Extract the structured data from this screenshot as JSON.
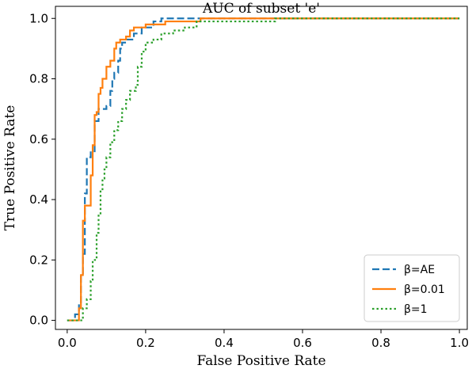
{
  "chart_data": {
    "type": "line",
    "title": "AUC of subset 'e'",
    "xlabel": "False Positive Rate",
    "ylabel": "True Positive Rate",
    "xlim": [
      -0.03,
      1.02
    ],
    "ylim": [
      -0.03,
      1.04
    ],
    "xticks": [
      "0.0",
      "0.2",
      "0.4",
      "0.6",
      "0.8",
      "1.0"
    ],
    "yticks": [
      "0.0",
      "0.2",
      "0.4",
      "0.6",
      "0.8",
      "1.0"
    ],
    "grid": false,
    "legend_position": "bottom-right",
    "series": [
      {
        "name": "β=AE",
        "color": "#1f77b4",
        "style": "dashed",
        "points": [
          [
            0.0,
            0.0
          ],
          [
            0.02,
            0.0
          ],
          [
            0.02,
            0.02
          ],
          [
            0.03,
            0.02
          ],
          [
            0.03,
            0.06
          ],
          [
            0.035,
            0.06
          ],
          [
            0.035,
            0.15
          ],
          [
            0.04,
            0.15
          ],
          [
            0.04,
            0.22
          ],
          [
            0.045,
            0.22
          ],
          [
            0.045,
            0.42
          ],
          [
            0.05,
            0.42
          ],
          [
            0.05,
            0.54
          ],
          [
            0.06,
            0.54
          ],
          [
            0.06,
            0.56
          ],
          [
            0.07,
            0.56
          ],
          [
            0.07,
            0.66
          ],
          [
            0.08,
            0.66
          ],
          [
            0.08,
            0.7
          ],
          [
            0.1,
            0.7
          ],
          [
            0.1,
            0.71
          ],
          [
            0.11,
            0.71
          ],
          [
            0.11,
            0.76
          ],
          [
            0.115,
            0.76
          ],
          [
            0.115,
            0.8
          ],
          [
            0.12,
            0.8
          ],
          [
            0.12,
            0.82
          ],
          [
            0.13,
            0.82
          ],
          [
            0.13,
            0.86
          ],
          [
            0.135,
            0.86
          ],
          [
            0.135,
            0.9
          ],
          [
            0.14,
            0.9
          ],
          [
            0.14,
            0.92
          ],
          [
            0.15,
            0.92
          ],
          [
            0.15,
            0.93
          ],
          [
            0.17,
            0.93
          ],
          [
            0.17,
            0.95
          ],
          [
            0.19,
            0.95
          ],
          [
            0.19,
            0.97
          ],
          [
            0.22,
            0.97
          ],
          [
            0.22,
            0.99
          ],
          [
            0.24,
            0.99
          ],
          [
            0.24,
            1.0
          ],
          [
            0.3,
            1.0
          ],
          [
            1.0,
            1.0
          ]
        ]
      },
      {
        "name": "β=0.01",
        "color": "#ff7f0e",
        "style": "solid",
        "points": [
          [
            0.0,
            0.0
          ],
          [
            0.03,
            0.0
          ],
          [
            0.03,
            0.04
          ],
          [
            0.035,
            0.04
          ],
          [
            0.035,
            0.15
          ],
          [
            0.04,
            0.15
          ],
          [
            0.04,
            0.33
          ],
          [
            0.045,
            0.33
          ],
          [
            0.045,
            0.38
          ],
          [
            0.06,
            0.38
          ],
          [
            0.06,
            0.48
          ],
          [
            0.065,
            0.48
          ],
          [
            0.065,
            0.58
          ],
          [
            0.07,
            0.58
          ],
          [
            0.07,
            0.68
          ],
          [
            0.075,
            0.68
          ],
          [
            0.075,
            0.69
          ],
          [
            0.08,
            0.69
          ],
          [
            0.08,
            0.75
          ],
          [
            0.085,
            0.75
          ],
          [
            0.085,
            0.77
          ],
          [
            0.09,
            0.77
          ],
          [
            0.09,
            0.8
          ],
          [
            0.1,
            0.8
          ],
          [
            0.1,
            0.84
          ],
          [
            0.11,
            0.84
          ],
          [
            0.11,
            0.86
          ],
          [
            0.12,
            0.86
          ],
          [
            0.12,
            0.9
          ],
          [
            0.125,
            0.9
          ],
          [
            0.125,
            0.92
          ],
          [
            0.135,
            0.92
          ],
          [
            0.135,
            0.93
          ],
          [
            0.15,
            0.93
          ],
          [
            0.15,
            0.94
          ],
          [
            0.16,
            0.94
          ],
          [
            0.16,
            0.96
          ],
          [
            0.17,
            0.96
          ],
          [
            0.17,
            0.97
          ],
          [
            0.2,
            0.97
          ],
          [
            0.2,
            0.98
          ],
          [
            0.25,
            0.98
          ],
          [
            0.25,
            0.99
          ],
          [
            0.34,
            0.99
          ],
          [
            0.34,
            1.0
          ],
          [
            1.0,
            1.0
          ]
        ]
      },
      {
        "name": "β=1",
        "color": "#2ca02c",
        "style": "dotted",
        "points": [
          [
            0.0,
            0.0
          ],
          [
            0.04,
            0.0
          ],
          [
            0.04,
            0.04
          ],
          [
            0.05,
            0.04
          ],
          [
            0.05,
            0.07
          ],
          [
            0.06,
            0.07
          ],
          [
            0.06,
            0.13
          ],
          [
            0.065,
            0.13
          ],
          [
            0.065,
            0.2
          ],
          [
            0.075,
            0.2
          ],
          [
            0.075,
            0.29
          ],
          [
            0.08,
            0.29
          ],
          [
            0.08,
            0.35
          ],
          [
            0.085,
            0.35
          ],
          [
            0.085,
            0.43
          ],
          [
            0.09,
            0.43
          ],
          [
            0.09,
            0.47
          ],
          [
            0.095,
            0.47
          ],
          [
            0.095,
            0.5
          ],
          [
            0.1,
            0.5
          ],
          [
            0.1,
            0.54
          ],
          [
            0.11,
            0.54
          ],
          [
            0.11,
            0.59
          ],
          [
            0.12,
            0.59
          ],
          [
            0.12,
            0.63
          ],
          [
            0.13,
            0.63
          ],
          [
            0.13,
            0.66
          ],
          [
            0.14,
            0.66
          ],
          [
            0.14,
            0.7
          ],
          [
            0.15,
            0.7
          ],
          [
            0.15,
            0.73
          ],
          [
            0.16,
            0.73
          ],
          [
            0.16,
            0.76
          ],
          [
            0.175,
            0.76
          ],
          [
            0.175,
            0.78
          ],
          [
            0.18,
            0.78
          ],
          [
            0.18,
            0.84
          ],
          [
            0.19,
            0.84
          ],
          [
            0.19,
            0.89
          ],
          [
            0.2,
            0.89
          ],
          [
            0.2,
            0.92
          ],
          [
            0.22,
            0.92
          ],
          [
            0.22,
            0.93
          ],
          [
            0.24,
            0.93
          ],
          [
            0.24,
            0.95
          ],
          [
            0.27,
            0.95
          ],
          [
            0.27,
            0.96
          ],
          [
            0.3,
            0.96
          ],
          [
            0.3,
            0.97
          ],
          [
            0.33,
            0.97
          ],
          [
            0.33,
            0.99
          ],
          [
            0.53,
            0.99
          ],
          [
            0.53,
            1.0
          ],
          [
            1.0,
            1.0
          ]
        ]
      }
    ]
  }
}
